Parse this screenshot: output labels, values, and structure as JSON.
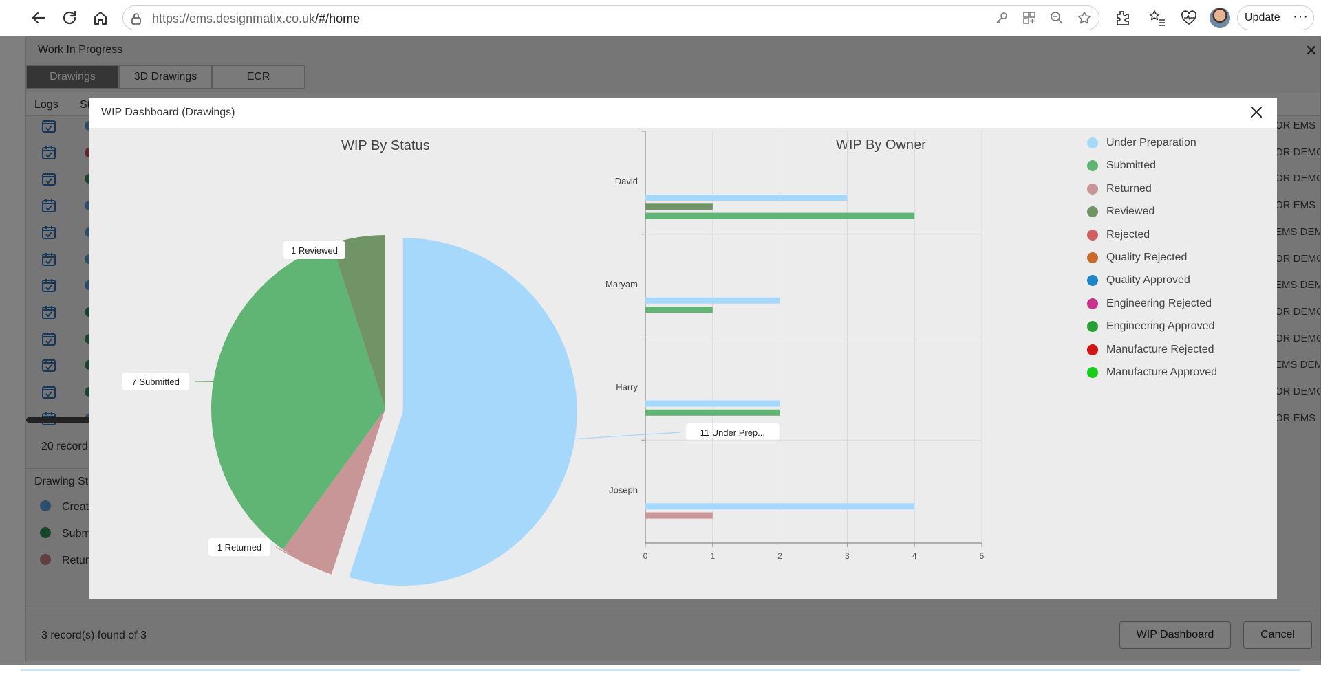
{
  "browser": {
    "url_host": "https://ems.designmatix.co.uk",
    "url_path": "/#/home",
    "update_label": "Update"
  },
  "wip_window": {
    "title": "Work In Progress",
    "tabs": [
      "Drawings",
      "3D Drawings",
      "ECR"
    ],
    "columns": [
      "Logs",
      "St"
    ],
    "row_texts": [
      "OR EMS",
      "OR DEMC",
      "OR DEMC",
      "OR EMS",
      "EMS DEM",
      "OR DEMC",
      "EMS DEM",
      "OR DEMC",
      "OR DEMC",
      "EMS DEM",
      "OR DEMC",
      "OR EMS"
    ],
    "row_status_colors": [
      "#5b9bd5",
      "#c0504d",
      "#2e8b57",
      "#5b9bd5",
      "#5b9bd5",
      "#5b9bd5",
      "#5b9bd5",
      "#2e8b57",
      "#2e8b57",
      "#2e8b57",
      "#2e8b57",
      "#5b9bd5"
    ],
    "records_text": "20 record",
    "status_legend": {
      "title": "Drawing Sta",
      "items": [
        {
          "label": "Create",
          "color": "#5b9bd5"
        },
        {
          "label": "Subm",
          "color": "#2e8b57"
        },
        {
          "label": "Retur",
          "color": "#c08080"
        }
      ]
    },
    "footer": {
      "records_text": "3 record(s) found of 3",
      "wip_dashboard_label": "WIP Dashboard",
      "cancel_label": "Cancel"
    }
  },
  "modal": {
    "title": "WIP Dashboard (Drawings)",
    "pie_title": "WIP By Status",
    "bar_title": "WIP By Owner",
    "legend": [
      {
        "label": "Under Preparation",
        "color": "#a5d8fb"
      },
      {
        "label": "Submitted",
        "color": "#60b574"
      },
      {
        "label": "Returned",
        "color": "#c89696"
      },
      {
        "label": "Reviewed",
        "color": "#719466"
      },
      {
        "label": "Rejected",
        "color": "#cf5f63"
      },
      {
        "label": "Quality Rejected",
        "color": "#c86a2a"
      },
      {
        "label": "Quality Approved",
        "color": "#1c86c6"
      },
      {
        "label": "Engineering Rejected",
        "color": "#c9338a"
      },
      {
        "label": "Engineering Approved",
        "color": "#27a035"
      },
      {
        "label": "Manufacture Rejected",
        "color": "#d21414"
      },
      {
        "label": "Manufacture Approved",
        "color": "#18cc1a"
      }
    ]
  },
  "chart_data": [
    {
      "type": "pie",
      "title": "WIP By Status",
      "slices": [
        {
          "label": "Under Preparation",
          "value": 11,
          "color": "#a5d8fb",
          "callout": "11 Under Prep...",
          "exploded": true
        },
        {
          "label": "Returned",
          "value": 1,
          "color": "#c89696",
          "callout": "1 Returned"
        },
        {
          "label": "Submitted",
          "value": 7,
          "color": "#60b574",
          "callout": "7 Submitted"
        },
        {
          "label": "Reviewed",
          "value": 1,
          "color": "#719466",
          "callout": "1 Reviewed"
        }
      ]
    },
    {
      "type": "bar",
      "orientation": "horizontal",
      "title": "WIP By Owner",
      "categories": [
        "David",
        "Maryam",
        "Harry",
        "Joseph"
      ],
      "xlim": [
        0,
        5
      ],
      "xticks": [
        "0",
        "1",
        "2",
        "3",
        "4",
        "5"
      ],
      "grid": true,
      "legend_position": "right",
      "series": [
        {
          "name": "Under Preparation",
          "color": "#a5d8fb",
          "values": [
            3,
            2,
            2,
            4
          ]
        },
        {
          "name": "Reviewed",
          "color": "#719466",
          "values": [
            1,
            0,
            0,
            0
          ]
        },
        {
          "name": "Submitted",
          "color": "#60b574",
          "values": [
            4,
            1,
            2,
            0
          ]
        },
        {
          "name": "Returned",
          "color": "#c89696",
          "values": [
            0,
            0,
            0,
            1
          ]
        }
      ]
    }
  ]
}
